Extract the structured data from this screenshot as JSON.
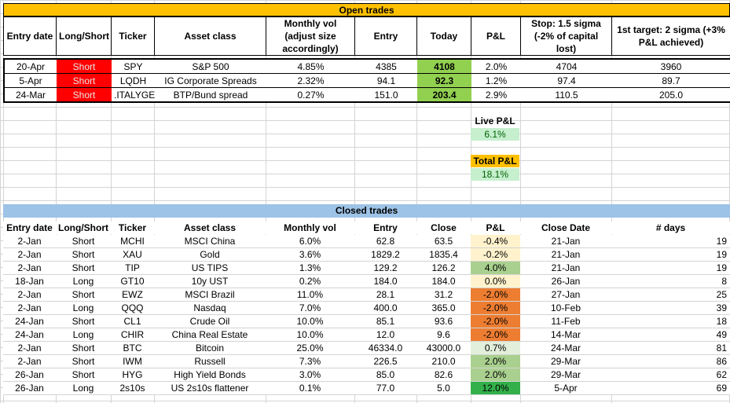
{
  "open": {
    "title": "Open trades",
    "headers": [
      "Entry date",
      "Long/Short",
      "Ticker",
      "Asset class",
      "Monthly vol (adjust size accordingly)",
      "Entry",
      "Today",
      "P&L",
      "Stop: 1.5 sigma (-2% of capital lost)",
      "1st target: 2 sigma (+3% P&L achieved)"
    ],
    "rows": [
      {
        "entry_date": "20-Apr",
        "side": "Short",
        "ticker": "SPY",
        "asset": "S&P 500",
        "vol": "4.85%",
        "entry": "4385",
        "today": "4108",
        "pnl": "2.0%",
        "stop": "4704",
        "target": "3960"
      },
      {
        "entry_date": "5-Apr",
        "side": "Short",
        "ticker": "LQDH",
        "asset": "IG Corporate Spreads",
        "vol": "2.32%",
        "entry": "94.1",
        "today": "92.3",
        "pnl": "1.2%",
        "stop": "97.4",
        "target": "89.7"
      },
      {
        "entry_date": "24-Mar",
        "side": "Short",
        "ticker": ".ITALYGER",
        "asset": "BTP/Bund spread",
        "vol": "0.27%",
        "entry": "151.0",
        "today": "203.4",
        "pnl": "2.9%",
        "stop": "110.5",
        "target": "205.0"
      }
    ],
    "live_pnl_label": "Live P&L",
    "live_pnl_value": "6.1%",
    "total_pnl_label": "Total P&L",
    "total_pnl_value": "18.1%"
  },
  "closed": {
    "title": "Closed trades",
    "headers": [
      "Entry date",
      "Long/Short",
      "Ticker",
      "Asset class",
      "Monthly vol",
      "Entry",
      "Close",
      "P&L",
      "Close Date",
      "# days"
    ],
    "rows": [
      {
        "entry_date": "2-Jan",
        "side": "Short",
        "ticker": "MCHI",
        "asset": "MSCI China",
        "vol": "6.0%",
        "entry": "62.8",
        "close": "63.5",
        "pnl": "-0.4%",
        "close_date": "21-Jan",
        "days": "19",
        "pnl_color": "#fff2cc"
      },
      {
        "entry_date": "2-Jan",
        "side": "Short",
        "ticker": "XAU",
        "asset": "Gold",
        "vol": "3.6%",
        "entry": "1829.2",
        "close": "1835.4",
        "pnl": "-0.2%",
        "close_date": "21-Jan",
        "days": "19",
        "pnl_color": "#fff2cc"
      },
      {
        "entry_date": "2-Jan",
        "side": "Short",
        "ticker": "TIP",
        "asset": "US TIPS",
        "vol": "1.3%",
        "entry": "129.2",
        "close": "126.2",
        "pnl": "4.0%",
        "close_date": "21-Jan",
        "days": "19",
        "pnl_color": "#a9d08e"
      },
      {
        "entry_date": "18-Jan",
        "side": "Long",
        "ticker": "GT10",
        "asset": "10y UST",
        "vol": "0.2%",
        "entry": "184.0",
        "close": "184.0",
        "pnl": "0.0%",
        "close_date": "26-Jan",
        "days": "8",
        "pnl_color": "#fff2cc"
      },
      {
        "entry_date": "2-Jan",
        "side": "Short",
        "ticker": "EWZ",
        "asset": "MSCI Brazil",
        "vol": "11.0%",
        "entry": "28.1",
        "close": "31.2",
        "pnl": "-2.0%",
        "close_date": "27-Jan",
        "days": "25",
        "pnl_color": "#ed7d31"
      },
      {
        "entry_date": "2-Jan",
        "side": "Long",
        "ticker": "QQQ",
        "asset": "Nasdaq",
        "vol": "7.0%",
        "entry": "400.0",
        "close": "365.0",
        "pnl": "-2.0%",
        "close_date": "10-Feb",
        "days": "39",
        "pnl_color": "#ed7d31"
      },
      {
        "entry_date": "24-Jan",
        "side": "Short",
        "ticker": "CL1",
        "asset": "Crude Oil",
        "vol": "10.0%",
        "entry": "85.1",
        "close": "93.6",
        "pnl": "-2.0%",
        "close_date": "11-Feb",
        "days": "18",
        "pnl_color": "#ed7d31"
      },
      {
        "entry_date": "24-Jan",
        "side": "Long",
        "ticker": "CHIR",
        "asset": "China Real Estate",
        "vol": "10.0%",
        "entry": "12.0",
        "close": "9.6",
        "pnl": "-2.0%",
        "close_date": "14-Mar",
        "days": "49",
        "pnl_color": "#ed7d31"
      },
      {
        "entry_date": "2-Jan",
        "side": "Short",
        "ticker": "BTC",
        "asset": "Bitcoin",
        "vol": "25.0%",
        "entry": "46334.0",
        "close": "43000.0",
        "pnl": "0.7%",
        "close_date": "24-Mar",
        "days": "81",
        "pnl_color": "#e2efda"
      },
      {
        "entry_date": "2-Jan",
        "side": "Short",
        "ticker": "IWM",
        "asset": "Russell",
        "vol": "7.3%",
        "entry": "226.5",
        "close": "210.0",
        "pnl": "2.0%",
        "close_date": "29-Mar",
        "days": "86",
        "pnl_color": "#a9d08e"
      },
      {
        "entry_date": "26-Jan",
        "side": "Short",
        "ticker": "HYG",
        "asset": "High Yield Bonds",
        "vol": "3.0%",
        "entry": "85.0",
        "close": "82.6",
        "pnl": "2.0%",
        "close_date": "29-Mar",
        "days": "62",
        "pnl_color": "#a9d08e"
      },
      {
        "entry_date": "26-Jan",
        "side": "Long",
        "ticker": "2s10s",
        "asset": "US 2s10s flattener",
        "vol": "0.1%",
        "entry": "77.0",
        "close": "5.0",
        "pnl": "12.0%",
        "close_date": "5-Apr",
        "days": "69",
        "pnl_color": "#33b04a"
      }
    ]
  }
}
